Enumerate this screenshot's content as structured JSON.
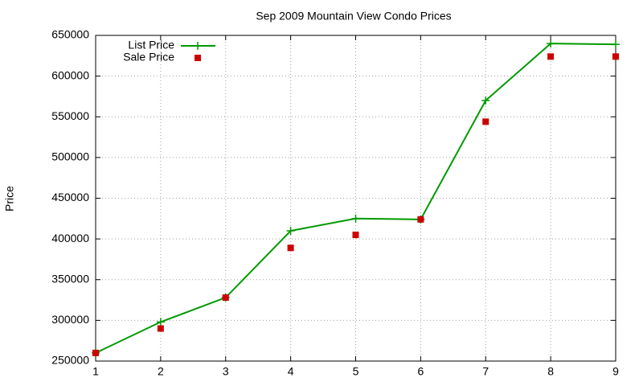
{
  "chart_data": {
    "type": "line",
    "title": "Sep 2009 Mountain View Condo Prices",
    "ylabel": "Price",
    "x": [
      1,
      2,
      3,
      4,
      5,
      6,
      7,
      8,
      9
    ],
    "series": [
      {
        "name": "List Price",
        "color": "#009900",
        "line": true,
        "marker": "plus",
        "values": [
          260000,
          298000,
          328000,
          410000,
          425000,
          424000,
          570000,
          640000,
          639000
        ]
      },
      {
        "name": "Sale Price",
        "color": "#cc0000",
        "line": false,
        "marker": "square",
        "values": [
          260000,
          290000,
          328000,
          389000,
          405000,
          424000,
          544000,
          624000,
          624000
        ]
      }
    ],
    "xlim": [
      1,
      9
    ],
    "xticks": [
      1,
      2,
      3,
      4,
      5,
      6,
      7,
      8,
      9
    ],
    "ylim": [
      250000,
      650000
    ],
    "yticks": [
      250000,
      300000,
      350000,
      400000,
      450000,
      500000,
      550000,
      600000,
      650000
    ],
    "grid": true,
    "legend": "top-left"
  }
}
